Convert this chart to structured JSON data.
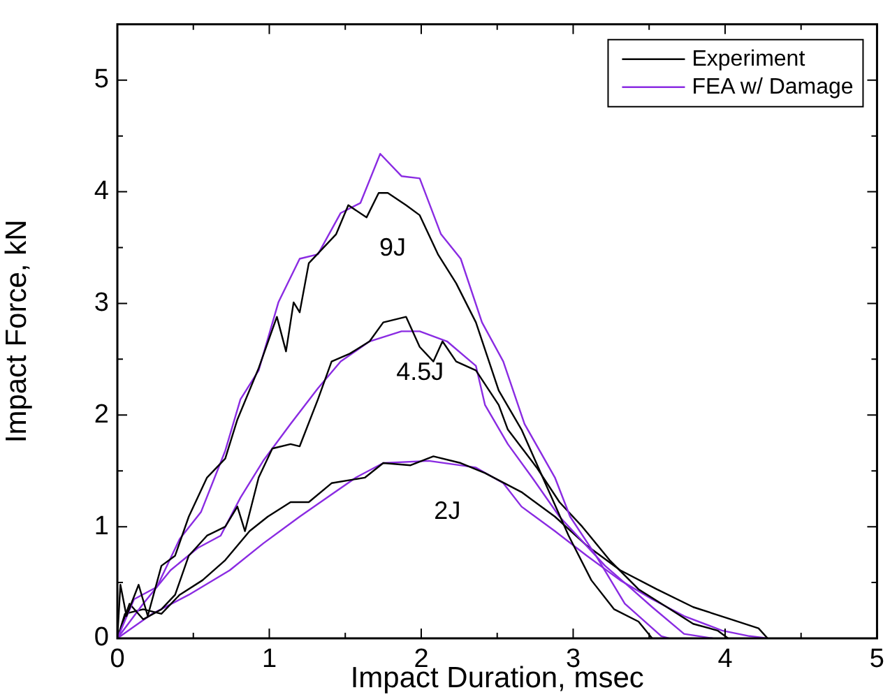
{
  "chart_data": {
    "type": "line",
    "xlabel": "Impact Duration, msec",
    "ylabel": "Impact Force, kN",
    "xlim": [
      0,
      5
    ],
    "xticks": [
      0,
      1,
      2,
      3,
      4,
      5
    ],
    "ylim": [
      0,
      5.5
    ],
    "yticks": [
      0,
      1,
      2,
      3,
      4,
      5
    ],
    "legend": "top right",
    "grid": false,
    "marker": "none",
    "line_style": "solid",
    "annotations": [
      "9J",
      "4.5J",
      "2J"
    ],
    "series": [
      {
        "name": "Experiment",
        "color": "#000000",
        "x": [
          0,
          0.02,
          0.06,
          0.14,
          0.2,
          0.29,
          0.38,
          0.47,
          0.59,
          0.71,
          0.79,
          0.93,
          1.05,
          1.11,
          1.16,
          1.2,
          1.26,
          1.35,
          1.44,
          1.52,
          1.64,
          1.72,
          1.78,
          1.9,
          1.99,
          2.11,
          2.23,
          2.36,
          2.51,
          2.66,
          2.8,
          2.97,
          3.12,
          3.27,
          3.43,
          3.52
        ],
        "values": [
          0,
          0.48,
          0.2,
          0.48,
          0.2,
          0.65,
          0.74,
          1.09,
          1.44,
          1.61,
          1.96,
          2.42,
          2.88,
          2.57,
          3.01,
          2.92,
          3.36,
          3.49,
          3.62,
          3.88,
          3.77,
          3.99,
          3.99,
          3.88,
          3.79,
          3.44,
          3.18,
          2.83,
          2.22,
          1.87,
          1.44,
          0.92,
          0.52,
          0.26,
          0.15,
          0
        ]
      },
      {
        "name": "FEA w/ Damage",
        "color": "#8a2be2",
        "x": [
          0,
          0.11,
          0.26,
          0.41,
          0.55,
          0.71,
          0.81,
          0.93,
          1.06,
          1.2,
          1.32,
          1.47,
          1.6,
          1.73,
          1.87,
          1.99,
          2.13,
          2.26,
          2.4,
          2.54,
          2.68,
          2.88,
          2.98,
          3.15,
          3.34,
          3.58,
          3.63
        ],
        "values": [
          0,
          0.35,
          0.46,
          0.89,
          1.13,
          1.68,
          2.14,
          2.4,
          3.01,
          3.4,
          3.44,
          3.81,
          3.9,
          4.34,
          4.14,
          4.12,
          3.62,
          3.4,
          2.83,
          2.48,
          1.92,
          1.44,
          1.09,
          0.74,
          0.31,
          0.02,
          0
        ]
      },
      {
        "color": "#000000",
        "x": [
          0,
          0.08,
          0.17,
          0.29,
          0.38,
          0.47,
          0.59,
          0.71,
          0.79,
          0.84,
          0.93,
          1.02,
          1.14,
          1.2,
          1.32,
          1.41,
          1.53,
          1.66,
          1.75,
          1.9,
          1.99,
          2.08,
          2.14,
          2.23,
          2.36,
          2.51,
          2.57,
          2.76,
          2.91,
          3.06,
          3.24,
          3.43,
          3.64,
          3.79,
          3.95,
          4.02
        ],
        "values": [
          0,
          0.31,
          0.17,
          0.26,
          0.39,
          0.74,
          0.92,
          1.0,
          1.18,
          0.96,
          1.44,
          1.7,
          1.74,
          1.72,
          2.14,
          2.48,
          2.55,
          2.66,
          2.83,
          2.88,
          2.61,
          2.48,
          2.66,
          2.48,
          2.4,
          2.09,
          1.87,
          1.53,
          1.22,
          1.0,
          0.7,
          0.44,
          0.26,
          0.13,
          0.07,
          0
        ]
      },
      {
        "color": "#8a2be2",
        "x": [
          0,
          0.17,
          0.35,
          0.53,
          0.68,
          0.81,
          0.96,
          1.14,
          1.32,
          1.47,
          1.66,
          1.87,
          1.99,
          2.17,
          2.36,
          2.42,
          2.57,
          2.73,
          2.91,
          3.06,
          3.21,
          3.37,
          3.52,
          3.73,
          3.92
        ],
        "values": [
          0,
          0.31,
          0.61,
          0.81,
          0.92,
          1.26,
          1.59,
          1.92,
          2.24,
          2.48,
          2.66,
          2.75,
          2.75,
          2.66,
          2.44,
          2.09,
          1.74,
          1.44,
          1.09,
          0.87,
          0.65,
          0.46,
          0.28,
          0.04,
          0
        ]
      },
      {
        "color": "#000000",
        "x": [
          0,
          0.05,
          0.17,
          0.29,
          0.41,
          0.56,
          0.71,
          0.87,
          0.99,
          1.14,
          1.26,
          1.41,
          1.63,
          1.75,
          1.93,
          2.08,
          2.26,
          2.42,
          2.66,
          2.88,
          3.09,
          3.31,
          3.55,
          3.79,
          4.04,
          4.22,
          4.28
        ],
        "values": [
          0,
          0.22,
          0.26,
          0.22,
          0.39,
          0.52,
          0.7,
          0.96,
          1.09,
          1.22,
          1.22,
          1.39,
          1.44,
          1.57,
          1.55,
          1.63,
          1.57,
          1.48,
          1.31,
          1.09,
          0.83,
          0.61,
          0.44,
          0.28,
          0.17,
          0.09,
          0
        ]
      },
      {
        "color": "#8a2be2",
        "x": [
          0,
          0.23,
          0.47,
          0.74,
          0.96,
          1.2,
          1.38,
          1.57,
          1.75,
          2.05,
          2.36,
          2.54,
          2.66,
          2.88,
          3.09,
          3.31,
          3.52,
          3.73,
          3.98,
          4.16,
          4.28
        ],
        "values": [
          0,
          0.22,
          0.39,
          0.61,
          0.85,
          1.09,
          1.26,
          1.44,
          1.57,
          1.59,
          1.53,
          1.39,
          1.18,
          0.96,
          0.74,
          0.52,
          0.35,
          0.2,
          0.07,
          0.02,
          0
        ]
      }
    ]
  }
}
